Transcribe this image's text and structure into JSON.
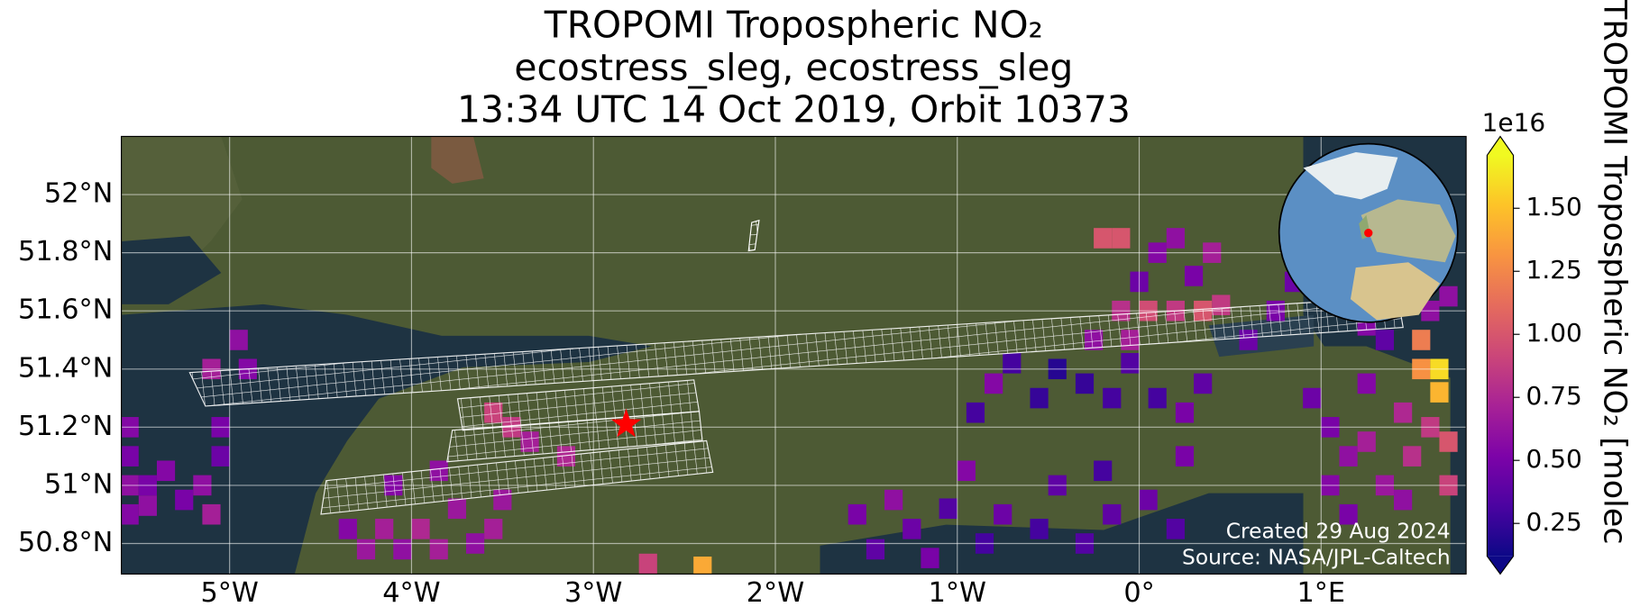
{
  "chart_data": {
    "type": "pixel_map",
    "title": [
      "TROPOMI Tropospheric NO₂",
      "ecostress_sleg, ecostress_sleg",
      "13:34 UTC 14 Oct 2019, Orbit 10373"
    ],
    "xlim": [
      -5.595,
      1.797
    ],
    "ylim": [
      50.695,
      52.2
    ],
    "xticks": [
      {
        "value": -5,
        "label": "5°W"
      },
      {
        "value": -4,
        "label": "4°W"
      },
      {
        "value": -3,
        "label": "3°W"
      },
      {
        "value": -2,
        "label": "2°W"
      },
      {
        "value": -1,
        "label": "1°W"
      },
      {
        "value": 0,
        "label": "0°"
      },
      {
        "value": 1,
        "label": "1°E"
      }
    ],
    "yticks": [
      {
        "value": 50.8,
        "label": "50.8°N"
      },
      {
        "value": 51,
        "label": "51°N"
      },
      {
        "value": 51.2,
        "label": "51.2°N"
      },
      {
        "value": 51.4,
        "label": "51.4°N"
      },
      {
        "value": 51.6,
        "label": "51.6°N"
      },
      {
        "value": 51.8,
        "label": "51.8°N"
      },
      {
        "value": 52,
        "label": "52°N"
      }
    ],
    "grid": true,
    "colormap": "plasma",
    "clim": [
      0.12,
      1.71
    ],
    "cticks": [
      {
        "value": 0.25,
        "label": "0.25"
      },
      {
        "value": 0.5,
        "label": "0.50"
      },
      {
        "value": 0.75,
        "label": "0.75"
      },
      {
        "value": 1.0,
        "label": "1.00"
      },
      {
        "value": 1.25,
        "label": "1.25"
      },
      {
        "value": 1.5,
        "label": "1.50"
      }
    ],
    "colorbar_offset": "1e16",
    "colorbar_label": "TROPOMI Tropospheric NO₂ [molec",
    "annotations": [
      "Created 29 Aug 2024",
      "Source: NASA/JPL-Caltech"
    ],
    "site": {
      "lon": -2.82,
      "lat": 51.21,
      "color": "#ff0000"
    },
    "pixels": {
      "lon": [
        -5.55,
        -5.55,
        -5.55,
        -5.55,
        -5.45,
        -5.45,
        -5.35,
        -5.25,
        -5.15,
        -5.05,
        -5.05,
        -5.1,
        -4.9,
        -4.95,
        -5.1,
        -4.35,
        -4.25,
        -4.15,
        -4.05,
        -3.95,
        -3.85,
        -3.75,
        -3.65,
        -3.55,
        -3.5,
        -3.45,
        -3.35,
        -3.15,
        -3.55,
        -3.85,
        -4.1,
        -2.4,
        -2.7,
        -1.55,
        -1.45,
        -1.35,
        -1.25,
        -1.15,
        -1.05,
        -0.95,
        -0.85,
        -0.75,
        -0.55,
        -0.45,
        -0.3,
        -0.2,
        -0.15,
        0.05,
        0.25,
        0.2,
        -0.9,
        -0.8,
        -0.7,
        -0.55,
        -0.45,
        -0.3,
        -0.15,
        -0.05,
        0.1,
        0.25,
        0.35,
        -0.2,
        -0.1,
        0.1,
        0.2,
        0.3,
        0.4,
        0.0,
        -0.1,
        0.05,
        0.2,
        0.35,
        0.45,
        0.6,
        -0.25,
        -0.05,
        0.95,
        1.05,
        1.05,
        1.15,
        1.15,
        1.25,
        1.25,
        1.35,
        1.45,
        1.55,
        1.65,
        1.65,
        1.55,
        1.7,
        1.7,
        1.6,
        1.5,
        1.45,
        1.35,
        1.25,
        1.6,
        1.7,
        0.75,
        0.85
      ],
      "lat": [
        51.2,
        51.1,
        51.0,
        50.9,
        51.0,
        50.93,
        51.05,
        50.95,
        51.0,
        51.1,
        51.2,
        50.9,
        51.4,
        51.5,
        51.4,
        50.85,
        50.78,
        50.85,
        50.78,
        50.85,
        50.78,
        50.92,
        50.8,
        50.85,
        50.95,
        51.2,
        51.15,
        51.1,
        51.25,
        51.05,
        51.0,
        50.72,
        50.73,
        50.9,
        50.78,
        50.95,
        50.85,
        50.75,
        50.92,
        51.05,
        50.8,
        50.9,
        50.85,
        51.0,
        50.8,
        51.05,
        50.9,
        50.95,
        51.1,
        50.85,
        51.25,
        51.35,
        51.42,
        51.3,
        51.4,
        51.35,
        51.3,
        51.42,
        51.3,
        51.25,
        51.35,
        51.85,
        51.85,
        51.8,
        51.85,
        51.72,
        51.8,
        51.7,
        51.6,
        51.6,
        51.6,
        51.6,
        51.62,
        51.5,
        51.5,
        51.5,
        51.3,
        51.2,
        51.0,
        51.1,
        50.9,
        51.35,
        51.15,
        51.0,
        51.25,
        51.4,
        51.4,
        51.32,
        51.5,
        51.15,
        51.0,
        51.2,
        51.1,
        50.95,
        51.5,
        51.55,
        51.6,
        51.65,
        51.6,
        51.7
      ],
      "values": [
        0.55,
        0.5,
        0.6,
        0.55,
        0.5,
        0.6,
        0.55,
        0.5,
        0.6,
        0.45,
        0.5,
        0.7,
        0.55,
        0.6,
        0.7,
        0.55,
        0.65,
        0.7,
        0.6,
        0.75,
        0.7,
        0.65,
        0.6,
        0.7,
        0.65,
        0.85,
        0.7,
        0.75,
        0.9,
        0.6,
        0.55,
        1.4,
        0.9,
        0.5,
        0.4,
        0.6,
        0.45,
        0.5,
        0.35,
        0.55,
        0.3,
        0.45,
        0.3,
        0.4,
        0.35,
        0.3,
        0.4,
        0.45,
        0.5,
        0.35,
        0.3,
        0.55,
        0.3,
        0.25,
        0.2,
        0.25,
        0.3,
        0.35,
        0.3,
        0.5,
        0.4,
        1.0,
        1.0,
        0.55,
        0.6,
        0.5,
        0.7,
        0.45,
        0.8,
        0.95,
        0.85,
        1.0,
        0.85,
        0.45,
        0.6,
        0.7,
        0.45,
        0.5,
        0.55,
        0.6,
        0.5,
        0.55,
        0.7,
        0.65,
        0.75,
        1.3,
        1.6,
        1.45,
        1.2,
        1.0,
        0.9,
        0.85,
        0.8,
        0.6,
        0.4,
        0.55,
        0.6,
        0.6,
        0.5,
        0.45
      ]
    }
  }
}
